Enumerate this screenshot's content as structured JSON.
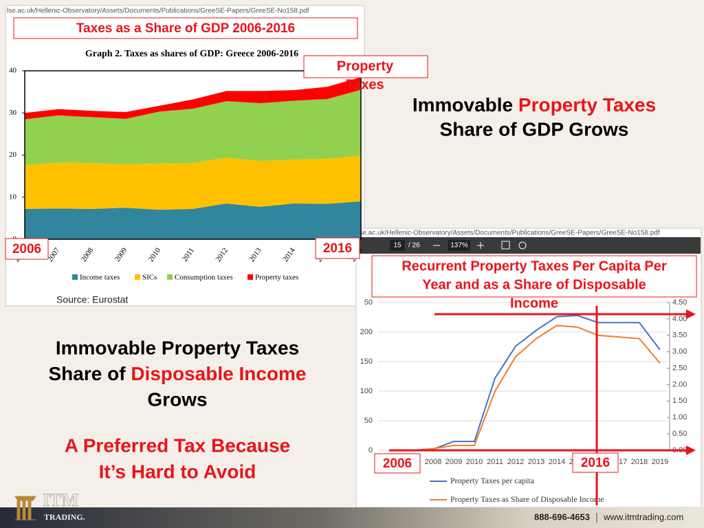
{
  "slide": {
    "url_top": "lse.ac.uk/Hellenic-Observatory/Assets/Documents/Publications/GreeSE-Papers/GreeSE-No158.pdf",
    "overlay_title_1": "Taxes as a Share of GDP 2006-2016",
    "property_label": [
      "Property",
      "Taxes"
    ],
    "year_start_1": "2006",
    "year_end_1": "2016",
    "source": "Source: Eurostat",
    "heading_right": {
      "line1_a": "Immovable ",
      "line1_b": "Property Taxes",
      "line2": "Share of GDP Grows"
    },
    "heading_left": {
      "line1": "Immovable Property Taxes",
      "line2_a": "Share of ",
      "line2_b": "Disposable Income",
      "line3": "Grows"
    },
    "preferred": [
      "A Preferred Tax Because",
      "It’s Hard to Avoid"
    ],
    "url_bottom": "lse.ac.uk/Hellenic-Observatory/Assets/Documents/Publications/GreeSE-Papers/GreeSE-No158.pdf",
    "pdf_page": "15",
    "pdf_pages": "/ 26",
    "pdf_zoom": "137%",
    "overlay_title_2": [
      "Recurrent Property Taxes Per Capita Per",
      "Year and as a Share of Disposable",
      "Income"
    ],
    "year_start_2": "2006",
    "year_end_2": "2016",
    "logo": [
      "ITM",
      "TRADING."
    ],
    "phone": "888-696-4653",
    "website": "www.itmtrading.com"
  },
  "chart_data": [
    {
      "type": "area",
      "title": "Graph 2. Taxes as shares of GDP: Greece 2006-2016",
      "categories": [
        "2006",
        "2007",
        "2008",
        "2009",
        "2010",
        "2011",
        "2012",
        "2013",
        "2014",
        "2015",
        "2016"
      ],
      "series": [
        {
          "name": "Income taxes",
          "color": "#31859c",
          "values": [
            7.2,
            7.3,
            7.2,
            7.5,
            7.0,
            7.2,
            8.5,
            7.7,
            8.5,
            8.4,
            9.0
          ]
        },
        {
          "name": "SICs",
          "color": "#ffc000",
          "values": [
            10.4,
            10.9,
            10.9,
            10.3,
            11.0,
            10.9,
            10.9,
            10.9,
            10.4,
            10.7,
            10.8
          ]
        },
        {
          "name": "Consumption taxes",
          "color": "#92d050",
          "values": [
            10.9,
            11.2,
            10.9,
            10.8,
            12.3,
            12.9,
            13.4,
            13.7,
            14.0,
            14.2,
            15.7
          ]
        },
        {
          "name": "Property taxes",
          "color": "#ff0000",
          "values": [
            1.5,
            1.5,
            1.5,
            1.6,
            1.4,
            2.2,
            2.4,
            2.9,
            2.5,
            2.9,
            3.0
          ]
        }
      ],
      "stacked": true,
      "ylim": [
        0,
        40
      ],
      "yticks": [
        0,
        10,
        20,
        30,
        40
      ]
    },
    {
      "type": "line",
      "categories": [
        "2006",
        "2007",
        "2008",
        "2009",
        "2010",
        "2011",
        "2012",
        "2013",
        "2014",
        "2015",
        "2016",
        "2017",
        "2018",
        "2019"
      ],
      "series": [
        {
          "name": "Property Taxes per capita",
          "color": "#4472c4",
          "values": [
            0,
            0,
            2,
            15,
            15,
            122,
            176,
            203,
            226,
            228,
            216,
            216,
            216,
            170
          ]
        },
        {
          "name": "Property Taxes as Share of Disposable Income",
          "color": "#ed7d31",
          "axis": "y2",
          "values": [
            0,
            0,
            0.05,
            0.15,
            0.15,
            1.8,
            2.85,
            3.4,
            3.8,
            3.75,
            3.5,
            3.45,
            3.4,
            2.65
          ]
        }
      ],
      "ylim": [
        0,
        250
      ],
      "yticks": [
        0,
        50,
        100,
        150,
        200,
        {
          "value": 250,
          "label": "50"
        }
      ],
      "y2lim": [
        0,
        4.5
      ],
      "y2ticks": [
        {
          "value": 0,
          "label": "0.00"
        },
        {
          "value": 0.5,
          "label": "0.50"
        },
        {
          "value": 1,
          "label": "1.00"
        },
        {
          "value": 1.5,
          "label": "1.50"
        },
        {
          "value": 2,
          "label": "2.00"
        },
        {
          "value": 2.5,
          "label": "2.50"
        },
        {
          "value": 3,
          "label": "3.00"
        },
        {
          "value": 3.5,
          "label": "3.50"
        },
        {
          "value": 4,
          "label": "4.00"
        },
        {
          "value": 4.5,
          "label": "4.50"
        }
      ],
      "grid": true
    }
  ]
}
